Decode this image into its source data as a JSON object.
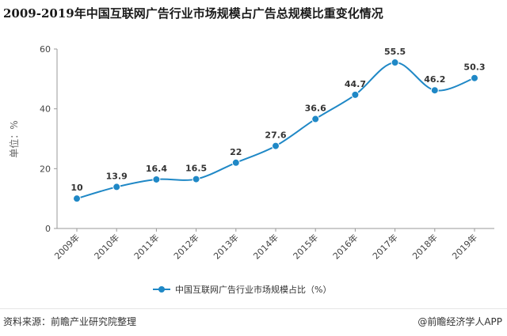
{
  "title": "2009-2019年中国互联网广告行业市场规模占广告总规模比重变化情况",
  "legend_label": "中国互联网广告行业市场规模占比（%）",
  "source_text": "资料来源：前瞻产业研究院整理",
  "brand_text": "@前瞻经济学人APP",
  "colors": {
    "series": "#1f88c6",
    "axis": "#999999"
  },
  "chart_data": {
    "type": "line",
    "title": "2009-2019年中国互联网广告行业市场规模占广告总规模比重变化情况",
    "ylabel": "单位：%",
    "xlabel": "",
    "ylim": [
      0,
      60
    ],
    "yticks": [
      0,
      20,
      40,
      60
    ],
    "categories": [
      "2009年",
      "2010年",
      "2011年",
      "2012年",
      "2013年",
      "2014年",
      "2015年",
      "2016年",
      "2017年",
      "2018年",
      "2019年"
    ],
    "series": [
      {
        "name": "中国互联网广告行业市场规模占比（%）",
        "values": [
          10,
          13.9,
          16.4,
          16.5,
          22,
          27.6,
          36.6,
          44.7,
          55.5,
          46.2,
          50.3
        ],
        "labels": [
          "10",
          "13.9",
          "16.4",
          "16.5",
          "22",
          "27.6",
          "36.6",
          "44.7",
          "55.5",
          "46.2",
          "50.3"
        ]
      }
    ],
    "grid": false,
    "legend_position": "bottom",
    "smooth": true
  }
}
